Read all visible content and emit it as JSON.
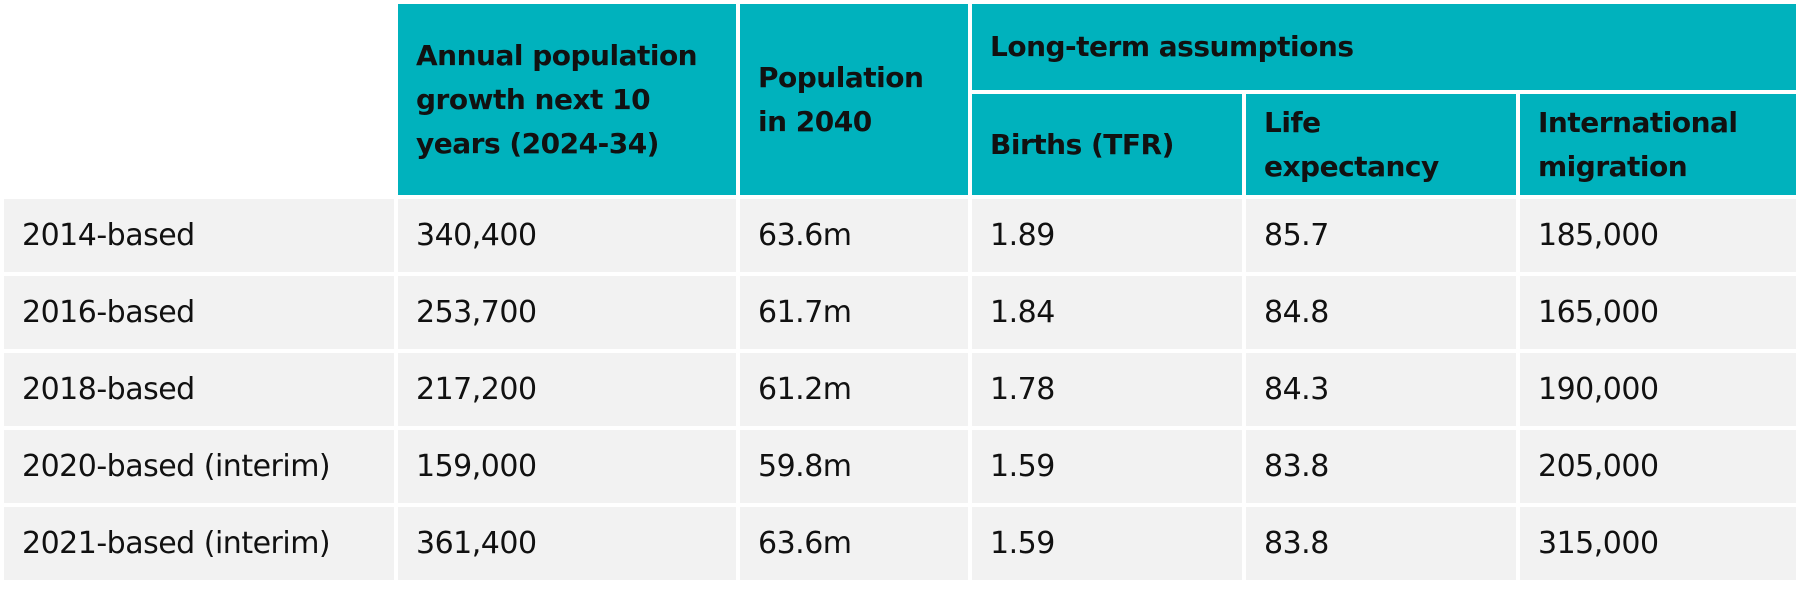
{
  "chart_data": {
    "type": "table",
    "headers": {
      "growth": "Annual population growth next 10 years (2024-34)",
      "pop2040": "Population in 2040",
      "long_term": "Long-term assumptions",
      "births": "Births (TFR)",
      "life": "Life expectancy",
      "migration": "International migration"
    },
    "rows": [
      {
        "label": "2014-based",
        "growth": "340,400",
        "pop2040": "63.6m",
        "births": "1.89",
        "life": "85.7",
        "migration": "185,000"
      },
      {
        "label": "2016-based",
        "growth": "253,700",
        "pop2040": "61.7m",
        "births": "1.84",
        "life": "84.8",
        "migration": "165,000"
      },
      {
        "label": "2018-based",
        "growth": "217,200",
        "pop2040": "61.2m",
        "births": "1.78",
        "life": "84.3",
        "migration": "190,000"
      },
      {
        "label": "2020-based (interim)",
        "growth": "159,000",
        "pop2040": "59.8m",
        "births": "1.59",
        "life": "83.8",
        "migration": "205,000"
      },
      {
        "label": "2021-based (interim)",
        "growth": "361,400",
        "pop2040": "63.6m",
        "births": "1.59",
        "life": "83.8",
        "migration": "315,000"
      }
    ]
  },
  "colors": {
    "header_bg": "#00b2bd",
    "cell_bg": "#f2f2f2",
    "text": "#111111"
  }
}
